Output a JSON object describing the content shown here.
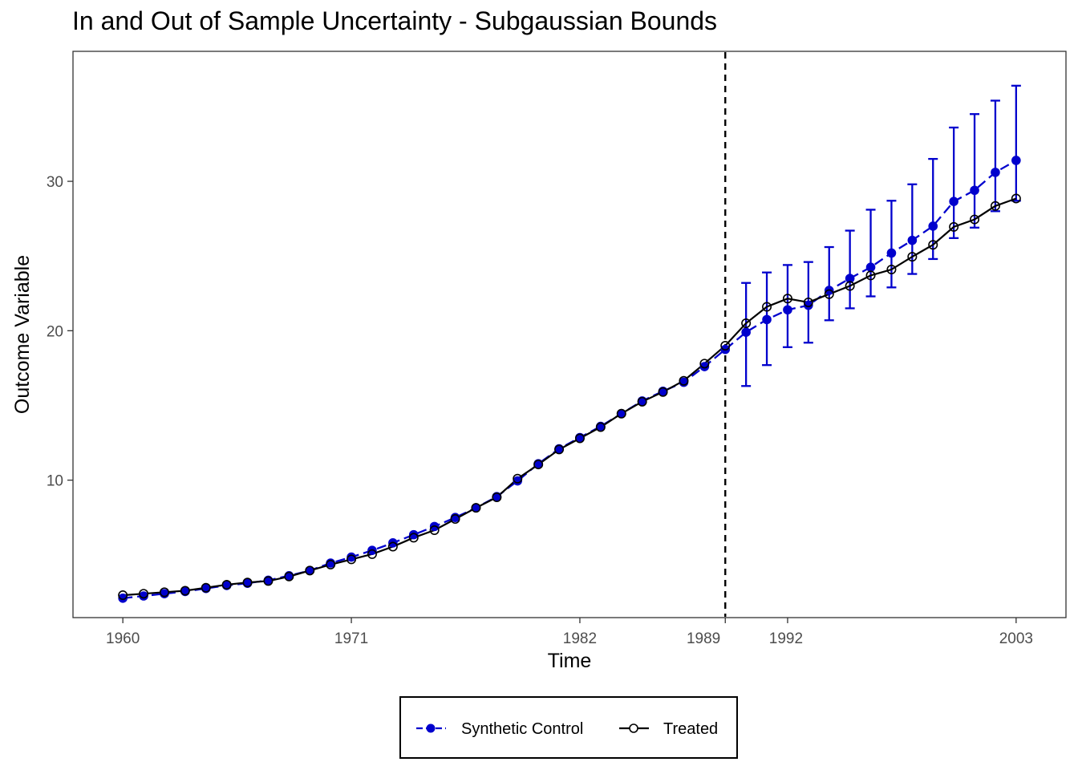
{
  "chart_data": {
    "type": "line",
    "title": "In and Out of Sample Uncertainty - Subgaussian Bounds",
    "xlabel": "Time",
    "ylabel": "Outcome Variable",
    "xlim": [
      1957.6,
      2005.4
    ],
    "ylim": [
      0.8,
      38.7
    ],
    "x_ticks": [
      1960,
      1971,
      1982,
      1989,
      1992,
      2003
    ],
    "y_ticks": [
      10,
      20,
      30
    ],
    "treatment_year": 1989,
    "grid": false,
    "legend_position": "bottom",
    "colors": {
      "synthetic": "#0000CD",
      "treated": "#000000"
    },
    "x": [
      1960,
      1961,
      1962,
      1963,
      1964,
      1965,
      1966,
      1967,
      1968,
      1969,
      1970,
      1971,
      1972,
      1973,
      1974,
      1975,
      1976,
      1977,
      1978,
      1979,
      1980,
      1981,
      1982,
      1983,
      1984,
      1985,
      1986,
      1987,
      1988,
      1989,
      1990,
      1991,
      1992,
      1993,
      1994,
      1995,
      1996,
      1997,
      1998,
      1999,
      2000,
      2001,
      2002,
      2003
    ],
    "series": [
      {
        "name": "Synthetic Control",
        "style": "dashed-filled",
        "values": [
          2.1,
          2.25,
          2.4,
          2.55,
          2.75,
          2.95,
          3.1,
          3.3,
          3.6,
          3.95,
          4.45,
          4.85,
          5.3,
          5.8,
          6.35,
          6.9,
          7.5,
          8.15,
          8.9,
          9.95,
          11.1,
          12.1,
          12.85,
          13.6,
          14.45,
          15.3,
          15.95,
          16.55,
          17.6,
          18.75,
          19.9,
          20.75,
          21.4,
          21.7,
          22.7,
          23.5,
          24.25,
          25.2,
          26.05,
          27.0,
          28.65,
          29.4,
          30.6,
          31.4
        ]
      },
      {
        "name": "Treated",
        "style": "solid-open",
        "values": [
          2.3,
          2.4,
          2.5,
          2.6,
          2.8,
          3.0,
          3.15,
          3.25,
          3.55,
          3.95,
          4.35,
          4.7,
          5.05,
          5.55,
          6.15,
          6.65,
          7.4,
          8.15,
          8.85,
          10.1,
          11.05,
          12.05,
          12.8,
          13.55,
          14.45,
          15.25,
          15.9,
          16.65,
          17.8,
          19.0,
          20.5,
          21.6,
          22.15,
          21.9,
          22.45,
          23.0,
          23.7,
          24.1,
          24.95,
          25.75,
          26.95,
          27.45,
          28.35,
          28.85
        ]
      }
    ],
    "error_bars": {
      "x": [
        1990,
        1991,
        1992,
        1993,
        1994,
        1995,
        1996,
        1997,
        1998,
        1999,
        2000,
        2001,
        2002,
        2003
      ],
      "lower": [
        16.3,
        17.7,
        18.9,
        19.2,
        20.7,
        21.5,
        22.3,
        22.9,
        23.8,
        24.8,
        26.2,
        26.9,
        28.0,
        28.7
      ],
      "upper": [
        23.2,
        23.9,
        24.4,
        24.6,
        25.6,
        26.7,
        28.1,
        28.7,
        29.8,
        31.5,
        33.6,
        34.5,
        35.4,
        36.4
      ]
    }
  }
}
